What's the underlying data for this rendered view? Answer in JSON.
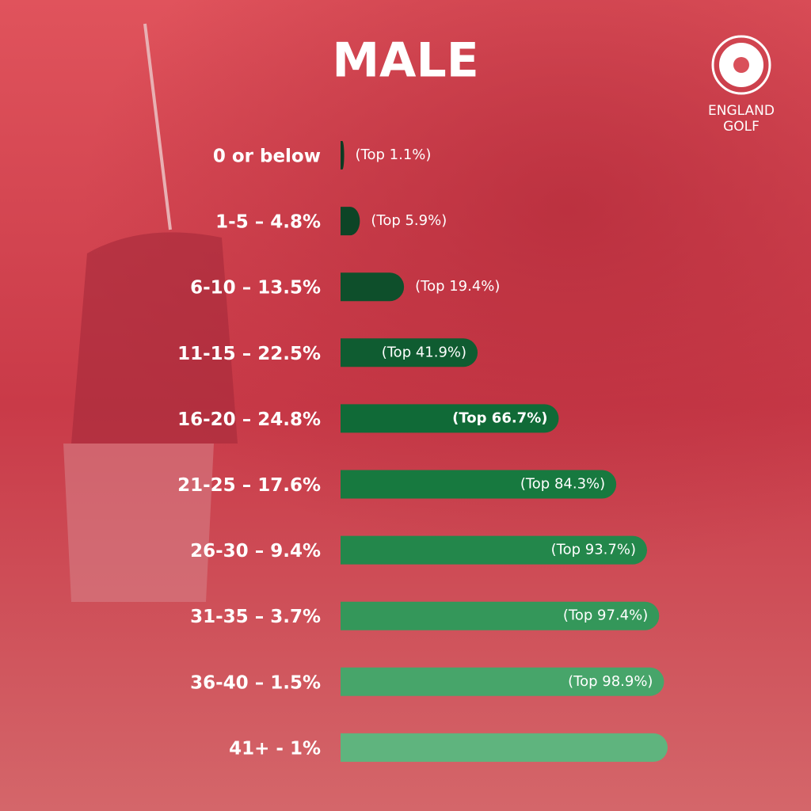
{
  "chart_data": {
    "type": "bar",
    "orientation": "horizontal",
    "title": "MALE",
    "categories": [
      "0 or below",
      "1-5 – 4.8%",
      "6-10 – 13.5%",
      "11-15 – 22.5%",
      "16-20 – 24.8%",
      "21-25 – 17.6%",
      "26-30 – 9.4%",
      "31-35 – 3.7%",
      "36-40 – 1.5%",
      "41+ - 1%"
    ],
    "values": [
      1.1,
      5.9,
      19.4,
      41.9,
      66.7,
      84.3,
      93.7,
      97.4,
      98.9,
      100
    ],
    "value_labels": [
      "(Top 1.1%)",
      "(Top 5.9%)",
      "(Top 19.4%)",
      "(Top 41.9%)",
      "(Top 66.7%)",
      "(Top 84.3%)",
      "(Top 93.7%)",
      "(Top 97.4%)",
      "(Top 98.9%)",
      null
    ],
    "colors": [
      "#0b3b22",
      "#0d4426",
      "#0e4f2b",
      "#0f5c31",
      "#106a37",
      "#17793f",
      "#23874b",
      "#34975a",
      "#47a56a",
      "#5fb47e"
    ],
    "xlim": [
      0,
      100
    ]
  },
  "logo": {
    "line1": "ENGLAND",
    "line2": "GOLF"
  }
}
